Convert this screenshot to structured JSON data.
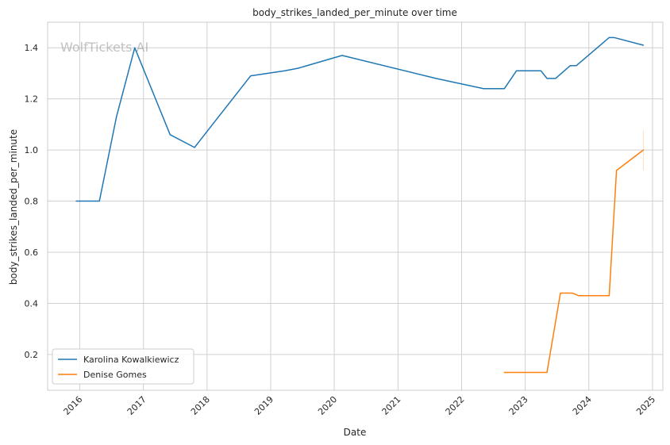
{
  "chart_data": {
    "type": "line",
    "title": "body_strikes_landed_per_minute over time",
    "xlabel": "Date",
    "ylabel": "body_strikes_landed_per_minute",
    "watermark": "WolfTickets.AI",
    "grid": true,
    "legend_position": "lower-left",
    "xlim": [
      "2015-07-01",
      "2025-03-01"
    ],
    "ylim": [
      0.06,
      1.5
    ],
    "x_ticks": [
      "2016-01-01",
      "2017-01-01",
      "2018-01-01",
      "2019-01-01",
      "2020-01-01",
      "2021-01-01",
      "2022-01-01",
      "2023-01-01",
      "2024-01-01",
      "2025-01-01"
    ],
    "x_tick_labels": [
      "2016",
      "2017",
      "2018",
      "2019",
      "2020",
      "2021",
      "2022",
      "2023",
      "2024",
      "2025"
    ],
    "y_ticks": [
      0.2,
      0.4,
      0.6,
      0.8,
      1.0,
      1.2,
      1.4
    ],
    "y_tick_labels": [
      "0.2",
      "0.4",
      "0.6",
      "0.8",
      "1.0",
      "1.2",
      "1.4"
    ],
    "series": [
      {
        "name": "Karolina Kowalkiewicz",
        "color": "#1f77b4",
        "points": [
          [
            "2015-12-12",
            0.8
          ],
          [
            "2016-04-23",
            0.8
          ],
          [
            "2016-07-30",
            1.13
          ],
          [
            "2016-11-12",
            1.4
          ],
          [
            "2017-06-03",
            1.06
          ],
          [
            "2017-10-21",
            1.01
          ],
          [
            "2018-09-08",
            1.29
          ],
          [
            "2019-03-23",
            1.31
          ],
          [
            "2019-06-08",
            1.32
          ],
          [
            "2020-02-15",
            1.37
          ],
          [
            "2021-08-07",
            1.28
          ],
          [
            "2022-05-07",
            1.24
          ],
          [
            "2022-09-03",
            1.24
          ],
          [
            "2022-11-12",
            1.31
          ],
          [
            "2023-04-01",
            1.31
          ],
          [
            "2023-05-06",
            1.28
          ],
          [
            "2023-06-24",
            1.28
          ],
          [
            "2023-09-16",
            1.33
          ],
          [
            "2023-10-21",
            1.33
          ],
          [
            "2024-04-27",
            1.44
          ],
          [
            "2024-05-25",
            1.44
          ],
          [
            "2024-11-09",
            1.41
          ]
        ]
      },
      {
        "name": "Denise Gomes",
        "color": "#ff7f0e",
        "points": [
          [
            "2022-09-03",
            0.13
          ],
          [
            "2023-05-06",
            0.13
          ],
          [
            "2023-07-22",
            0.44
          ],
          [
            "2023-09-30",
            0.44
          ],
          [
            "2023-11-04",
            0.43
          ],
          [
            "2024-04-27",
            0.43
          ],
          [
            "2024-06-08",
            0.92
          ],
          [
            "2024-11-09",
            1.0
          ]
        ],
        "error_band": {
          "date": "2024-11-09",
          "low": 0.92,
          "high": 1.08
        }
      }
    ]
  }
}
